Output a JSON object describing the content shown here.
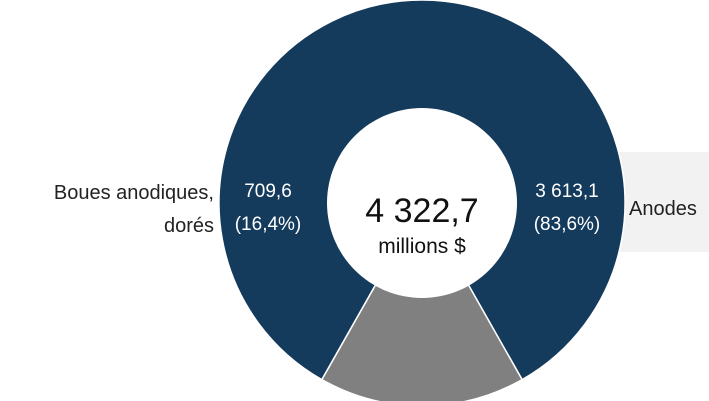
{
  "chart_data": {
    "type": "pie",
    "title": "",
    "total_value": "4 322,7",
    "total_unit": "millions $",
    "slices": [
      {
        "category": "Anodes",
        "value": 3613.1,
        "value_label": "3 613,1",
        "percent_label": "(83,6%)",
        "color": "#143a5c"
      },
      {
        "category_lines": [
          "Boues anodiques,",
          "dorés"
        ],
        "value": 709.6,
        "value_label": "709,6",
        "percent_label": "(16,4%)",
        "color": "#808080"
      }
    ]
  },
  "colors": {
    "background": "#ffffff",
    "center": "#ffffff",
    "label_box": "#f2f2f2",
    "inner_text": "#ffffff",
    "outer_text": "#222222"
  }
}
